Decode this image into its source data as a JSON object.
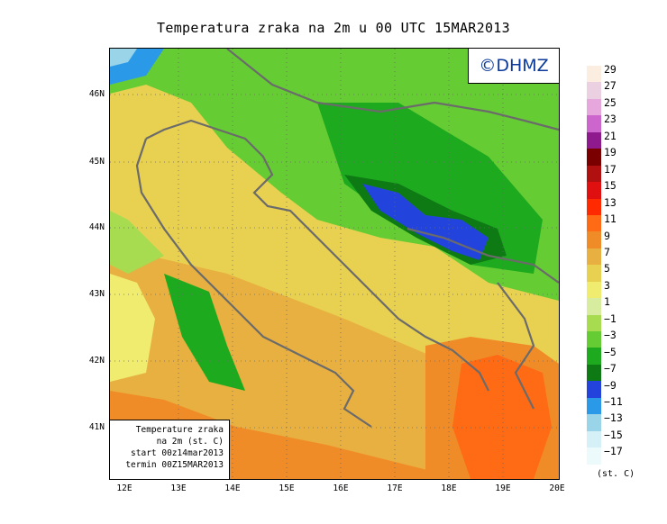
{
  "title": "Temperatura zraka na 2m u 00 UTC 15MAR2013",
  "logo": "©DHMZ",
  "infobox": {
    "line1": "Temperature zraka",
    "line2": "na 2m (st. C)",
    "line3": "start 00z14mar2013",
    "line4": "termin 00Z15MAR2013"
  },
  "y_axis": {
    "ticks": [
      "46N",
      "45N",
      "44N",
      "43N",
      "42N",
      "41N"
    ]
  },
  "x_axis": {
    "ticks": [
      "12E",
      "13E",
      "14E",
      "15E",
      "16E",
      "17E",
      "18E",
      "19E",
      "20E"
    ]
  },
  "legend": {
    "unit": "(st. C)",
    "labels": [
      "29",
      "27",
      "25",
      "23",
      "21",
      "19",
      "17",
      "15",
      "13",
      "11",
      "9",
      "7",
      "5",
      "3",
      "1",
      "−1",
      "−3",
      "−5",
      "−7",
      "−9",
      "−11",
      "−13",
      "−15",
      "−17"
    ],
    "colors": [
      "#fbeee0",
      "#ead0e0",
      "#e6a8dc",
      "#cc66cc",
      "#8e1a8e",
      "#7a0000",
      "#b01010",
      "#e01010",
      "#ff2a00",
      "#ff6a14",
      "#f08c28",
      "#e8b040",
      "#e8d050",
      "#f0ec70",
      "#d8eca0",
      "#a8dc50",
      "#66cc33",
      "#1eaa1e",
      "#0d7a14",
      "#2244dd",
      "#2a9ae8",
      "#99d4e8",
      "#d6f0f8",
      "#ecfafc"
    ]
  },
  "colors": {
    "coast": "#6b6b6b",
    "grid": "#6a6a6a"
  }
}
